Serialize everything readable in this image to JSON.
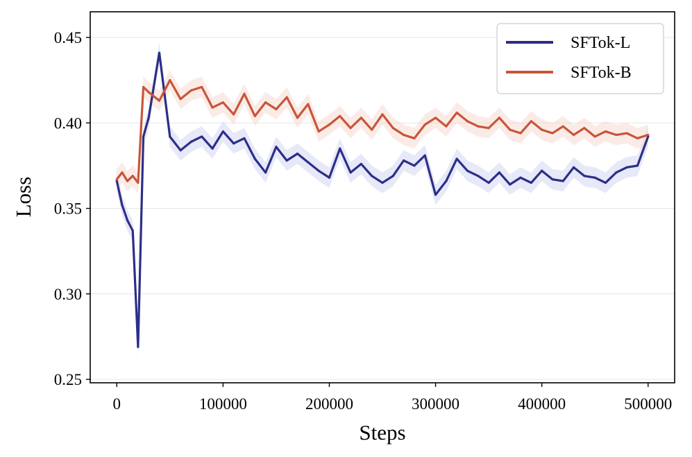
{
  "chart_data": {
    "type": "line",
    "title": "",
    "xlabel": "Steps",
    "ylabel": "Loss",
    "xlim": [
      -25000,
      525000
    ],
    "ylim": [
      0.248,
      0.465
    ],
    "xticks": [
      0,
      100000,
      200000,
      300000,
      400000,
      500000
    ],
    "xtick_labels": [
      "0",
      "100000",
      "200000",
      "300000",
      "400000",
      "500000"
    ],
    "yticks": [
      0.25,
      0.3,
      0.35,
      0.4,
      0.45
    ],
    "ytick_labels": [
      "0.25",
      "0.30",
      "0.35",
      "0.40",
      "0.45"
    ],
    "grid": true,
    "legend_position": "top-right",
    "series": [
      {
        "name": "SFTok-L",
        "color": "#2b2f87",
        "x": [
          0,
          5000,
          10000,
          15000,
          20000,
          25000,
          30000,
          40000,
          50000,
          60000,
          70000,
          80000,
          90000,
          100000,
          110000,
          120000,
          130000,
          140000,
          150000,
          160000,
          170000,
          180000,
          190000,
          200000,
          210000,
          220000,
          230000,
          240000,
          250000,
          260000,
          270000,
          280000,
          290000,
          300000,
          310000,
          320000,
          330000,
          340000,
          350000,
          360000,
          370000,
          380000,
          390000,
          400000,
          410000,
          420000,
          430000,
          440000,
          450000,
          460000,
          470000,
          480000,
          490000,
          500000
        ],
        "y": [
          0.366,
          0.352,
          0.343,
          0.337,
          0.269,
          0.392,
          0.403,
          0.441,
          0.392,
          0.384,
          0.389,
          0.392,
          0.385,
          0.395,
          0.388,
          0.391,
          0.379,
          0.371,
          0.386,
          0.378,
          0.382,
          0.377,
          0.372,
          0.368,
          0.385,
          0.371,
          0.376,
          0.369,
          0.365,
          0.369,
          0.378,
          0.375,
          0.381,
          0.358,
          0.366,
          0.379,
          0.372,
          0.369,
          0.365,
          0.371,
          0.364,
          0.368,
          0.365,
          0.372,
          0.367,
          0.366,
          0.374,
          0.369,
          0.368,
          0.365,
          0.371,
          0.374,
          0.375,
          0.392
        ]
      },
      {
        "name": "SFTok-B",
        "color": "#c8553a",
        "x": [
          0,
          5000,
          10000,
          15000,
          20000,
          25000,
          30000,
          40000,
          50000,
          60000,
          70000,
          80000,
          90000,
          100000,
          110000,
          120000,
          130000,
          140000,
          150000,
          160000,
          170000,
          180000,
          190000,
          200000,
          210000,
          220000,
          230000,
          240000,
          250000,
          260000,
          270000,
          280000,
          290000,
          300000,
          310000,
          320000,
          330000,
          340000,
          350000,
          360000,
          370000,
          380000,
          390000,
          400000,
          410000,
          420000,
          430000,
          440000,
          450000,
          460000,
          470000,
          480000,
          490000,
          500000
        ],
        "y": [
          0.367,
          0.371,
          0.366,
          0.369,
          0.365,
          0.421,
          0.418,
          0.413,
          0.425,
          0.414,
          0.419,
          0.421,
          0.409,
          0.412,
          0.405,
          0.417,
          0.404,
          0.412,
          0.408,
          0.415,
          0.403,
          0.411,
          0.395,
          0.399,
          0.404,
          0.397,
          0.403,
          0.396,
          0.405,
          0.397,
          0.393,
          0.391,
          0.399,
          0.403,
          0.398,
          0.406,
          0.401,
          0.398,
          0.397,
          0.403,
          0.396,
          0.394,
          0.401,
          0.396,
          0.394,
          0.398,
          0.393,
          0.397,
          0.392,
          0.395,
          0.393,
          0.394,
          0.391,
          0.393
        ]
      }
    ]
  }
}
